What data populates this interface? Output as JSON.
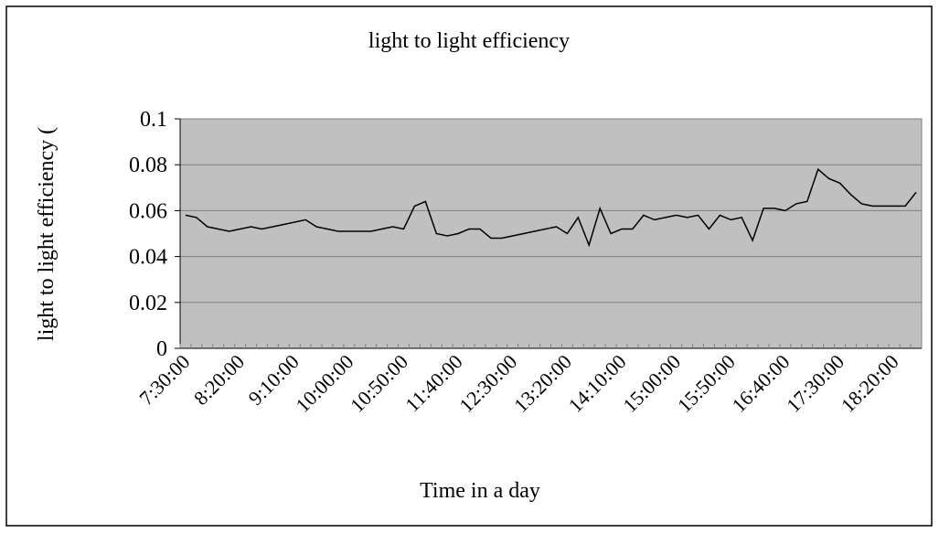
{
  "chart_data": {
    "type": "line",
    "title": "light to light efficiency",
    "x_label": "Time in a day",
    "y_label": "light to light efficiency (",
    "categories": [
      "7:30:00",
      null,
      null,
      null,
      null,
      "8:20:00",
      null,
      null,
      null,
      null,
      "9:10:00",
      null,
      null,
      null,
      null,
      "10:00:00",
      null,
      null,
      null,
      null,
      "10:50:00",
      null,
      null,
      null,
      null,
      "11:40:00",
      null,
      null,
      null,
      null,
      "12:30:00",
      null,
      null,
      null,
      null,
      "13:20:00",
      null,
      null,
      null,
      null,
      "14:10:00",
      null,
      null,
      null,
      null,
      "15:00:00",
      null,
      null,
      null,
      null,
      "15:50:00",
      null,
      null,
      null,
      null,
      "16:40:00",
      null,
      null,
      null,
      null,
      "17:30:00",
      null,
      null,
      null,
      null,
      "18:20:00",
      null,
      null
    ],
    "values": [
      0.058,
      0.057,
      0.053,
      0.052,
      0.051,
      0.052,
      0.053,
      0.052,
      0.053,
      0.054,
      0.055,
      0.056,
      0.053,
      0.052,
      0.051,
      0.051,
      0.051,
      0.051,
      0.052,
      0.053,
      0.052,
      0.062,
      0.064,
      0.05,
      0.049,
      0.05,
      0.052,
      0.052,
      0.048,
      0.048,
      0.049,
      0.05,
      0.051,
      0.052,
      0.053,
      0.05,
      0.057,
      0.045,
      0.061,
      0.05,
      0.052,
      0.052,
      0.058,
      0.056,
      0.057,
      0.058,
      0.057,
      0.058,
      0.052,
      0.058,
      0.056,
      0.057,
      0.047,
      0.061,
      0.061,
      0.06,
      0.063,
      0.064,
      0.078,
      0.074,
      0.072,
      0.067,
      0.063,
      0.062,
      0.062,
      0.062,
      0.062,
      0.068
    ],
    "color": "#000000",
    "ylim": [
      0,
      0.1
    ],
    "yticks": [
      0,
      0.02,
      0.04,
      0.06,
      0.08,
      0.1
    ],
    "grid": true
  }
}
